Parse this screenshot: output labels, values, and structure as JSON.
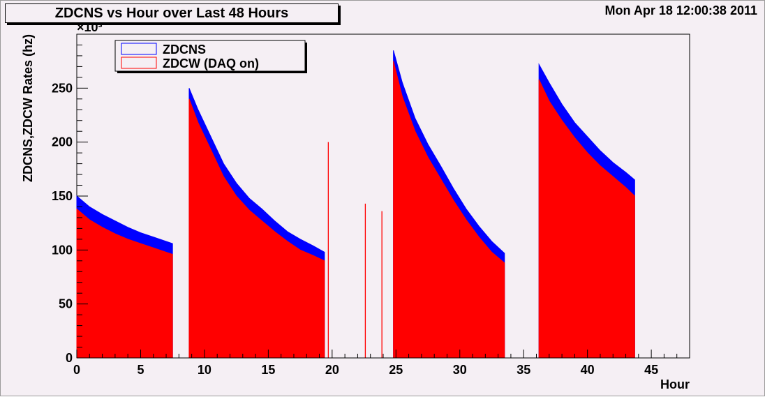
{
  "title": "ZDCNS vs Hour over Last 48 Hours",
  "timestamp": "Mon Apr 18 12:00:38 2011",
  "colors": {
    "zdcns": "#0000ff",
    "zdcw": "#ff0000",
    "background": "#f5eff4"
  },
  "chart_data": {
    "type": "area",
    "xlabel": "Hour",
    "ylabel": "ZDCNS,ZDCW Rates (hz)",
    "yexponent": "×10³",
    "xlim": [
      0,
      48
    ],
    "ylim": [
      0,
      300
    ],
    "xticks": [
      0,
      5,
      10,
      15,
      20,
      25,
      30,
      35,
      40,
      45
    ],
    "yticks": [
      0,
      50,
      100,
      150,
      200,
      250
    ],
    "legend_position": "top-left",
    "series": [
      {
        "name": "ZDCNS",
        "color": "#0000ff",
        "segments": [
          {
            "x": [
              0,
              1,
              2,
              3,
              4,
              5,
              6,
              7,
              7.5
            ],
            "y": [
              150,
              140,
              133,
              127,
              121,
              116,
              112,
              108,
              106
            ]
          },
          {
            "x": [
              8.8,
              9.5,
              10.5,
              11.5,
              12.5,
              13.5,
              14.5,
              15.5,
              16.5,
              17.5,
              18.5,
              19.4
            ],
            "y": [
              250,
              230,
              205,
              180,
              162,
              148,
              138,
              127,
              117,
              110,
              104,
              98
            ]
          },
          {
            "x": [
              24.8,
              25.5,
              26.5,
              27.5,
              28.5,
              29.5,
              30.5,
              31.5,
              32.5,
              33.5
            ],
            "y": [
              285,
              255,
              222,
              198,
              178,
              157,
              138,
              122,
              108,
              97
            ]
          },
          {
            "x": [
              36.2,
              37,
              38,
              39,
              40,
              41,
              42,
              43,
              43.7
            ],
            "y": [
              272,
              255,
              235,
              218,
              205,
              192,
              181,
              172,
              165
            ]
          }
        ]
      },
      {
        "name": "ZDCW (DAQ on)",
        "color": "#ff0000",
        "segments": [
          {
            "x": [
              0,
              1,
              2,
              3,
              4,
              5,
              6,
              7,
              7.5
            ],
            "y": [
              138,
              128,
              121,
              115,
              110,
              106,
              102,
              98,
              96
            ]
          },
          {
            "x": [
              8.8,
              9.5,
              10.5,
              11.5,
              12.5,
              13.5,
              14.5,
              15.5,
              16.5,
              17.5,
              18.5,
              19.4
            ],
            "y": [
              240,
              218,
              193,
              168,
              150,
              137,
              127,
              117,
              108,
              100,
              95,
              90
            ]
          },
          {
            "x": [
              24.8,
              25.5,
              26.5,
              27.5,
              28.5,
              29.5,
              30.5,
              31.5,
              32.5,
              33.5
            ],
            "y": [
              275,
              242,
              210,
              186,
              166,
              146,
              128,
              112,
              98,
              88
            ]
          },
          {
            "x": [
              36.2,
              37,
              38,
              39,
              40,
              41,
              42,
              43,
              43.7
            ],
            "y": [
              258,
              238,
              220,
              204,
              190,
              178,
              168,
              158,
              150
            ]
          }
        ],
        "spikes": [
          {
            "x": 19.7,
            "y": 200
          },
          {
            "x": 22.6,
            "y": 143
          },
          {
            "x": 23.9,
            "y": 136
          }
        ]
      }
    ]
  }
}
